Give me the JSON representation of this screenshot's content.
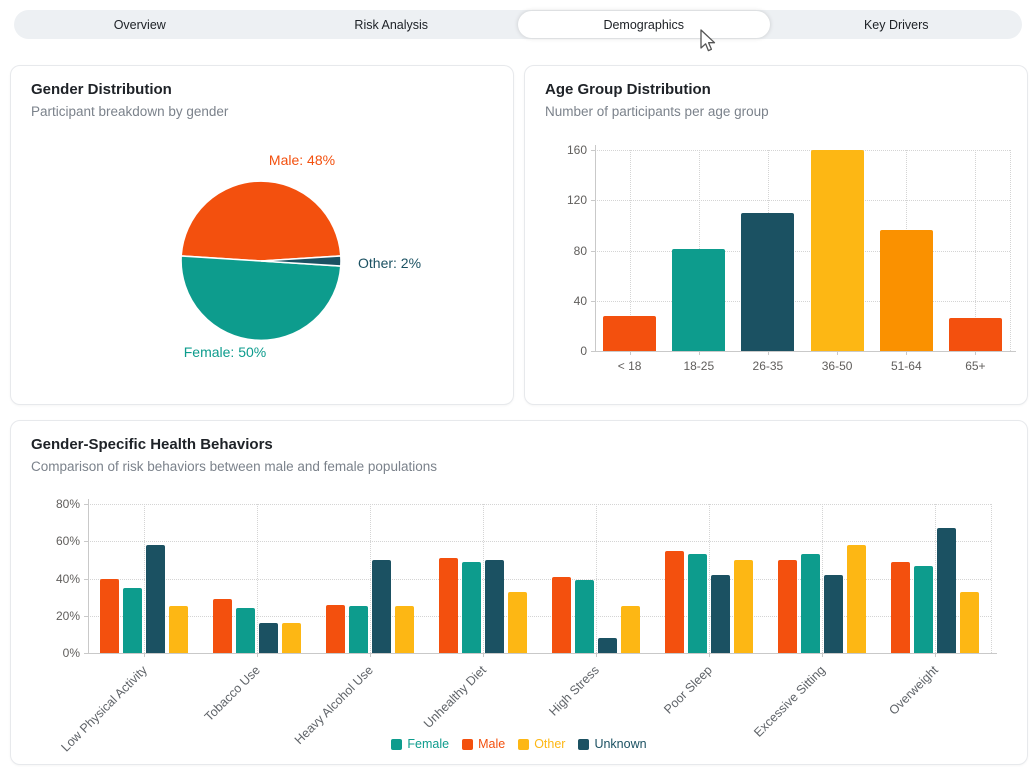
{
  "tabs": {
    "items": [
      {
        "label": "Overview",
        "active": false
      },
      {
        "label": "Risk Analysis",
        "active": false
      },
      {
        "label": "Demographics",
        "active": true
      },
      {
        "label": "Key Drivers",
        "active": false
      }
    ]
  },
  "cards": {
    "gender": {
      "title": "Gender Distribution",
      "subtitle": "Participant breakdown by gender"
    },
    "age": {
      "title": "Age Group Distribution",
      "subtitle": "Number of participants per age group"
    },
    "behaviors": {
      "title": "Gender-Specific Health Behaviors",
      "subtitle": "Comparison of risk behaviors between male and female populations"
    }
  },
  "colors": {
    "male_orange": "#F3500E",
    "female_teal": "#0D9C8D",
    "other_amber": "#FDB714",
    "unknown_navy": "#1B5162",
    "mid_orange": "#FA9100"
  },
  "chart_data": [
    {
      "id": "gender_pie",
      "type": "pie",
      "title": "Gender Distribution",
      "slices": [
        {
          "label": "Male",
          "value": 48,
          "color": "#F3500E",
          "display": "Male: 48%"
        },
        {
          "label": "Female",
          "value": 50,
          "color": "#0D9C8D",
          "display": "Female: 50%"
        },
        {
          "label": "Other",
          "value": 2,
          "color": "#1B5162",
          "display": "Other: 2%"
        }
      ],
      "unit": "%",
      "start_angle_deg": 3.6,
      "direction": "counterclockwise"
    },
    {
      "id": "age_bars",
      "type": "bar",
      "title": "Age Group Distribution",
      "categories": [
        "< 18",
        "18-25",
        "26-35",
        "36-50",
        "51-64",
        "65+"
      ],
      "values": [
        28,
        81,
        110,
        160,
        96,
        26
      ],
      "bar_colors": [
        "#F3500E",
        "#0D9C8D",
        "#1B5162",
        "#FDB714",
        "#FA9100",
        "#F3500E"
      ],
      "xlabel": "",
      "ylabel": "",
      "ylim": [
        0,
        160
      ],
      "ytick_step": 40,
      "ytick_suffix": "",
      "grid": "dotted"
    },
    {
      "id": "behavior_grouped_bars",
      "type": "bar",
      "title": "Gender-Specific Health Behaviors",
      "categories": [
        "Low Physical Activity",
        "Tobacco Use",
        "Heavy Alcohol Use",
        "Unhealthy Diet",
        "High Stress",
        "Poor Sleep",
        "Excessive Sitting",
        "Overweight"
      ],
      "series": [
        {
          "name": "Male",
          "color": "#F3500E",
          "values": [
            40,
            29,
            26,
            51,
            41,
            55,
            50,
            49
          ]
        },
        {
          "name": "Female",
          "color": "#0D9C8D",
          "values": [
            35,
            24,
            25,
            49,
            39,
            53,
            53,
            47
          ]
        },
        {
          "name": "Unknown",
          "color": "#1B5162",
          "values": [
            58,
            16,
            50,
            50,
            8,
            42,
            42,
            67
          ]
        },
        {
          "name": "Other",
          "color": "#FDB714",
          "values": [
            25,
            16,
            25,
            33,
            25,
            50,
            58,
            33
          ]
        }
      ],
      "legend": [
        {
          "name": "Female",
          "color": "#0D9C8D"
        },
        {
          "name": "Male",
          "color": "#F3500E"
        },
        {
          "name": "Other",
          "color": "#FDB714"
        },
        {
          "name": "Unknown",
          "color": "#1B5162"
        }
      ],
      "legend_position": "bottom",
      "ylim": [
        0,
        80
      ],
      "ytick_step": 20,
      "ytick_suffix": "%",
      "grid": "dotted"
    }
  ]
}
